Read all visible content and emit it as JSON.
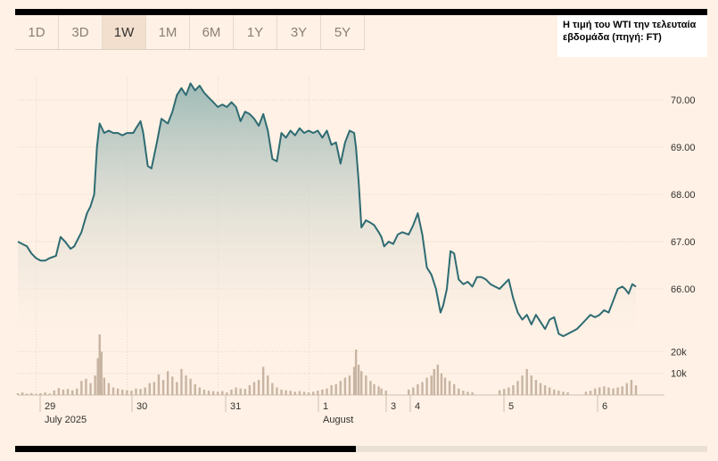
{
  "range_tabs": [
    {
      "label": "1D",
      "active": false
    },
    {
      "label": "3D",
      "active": false
    },
    {
      "label": "1W",
      "active": true
    },
    {
      "label": "1M",
      "active": false
    },
    {
      "label": "6M",
      "active": false
    },
    {
      "label": "1Y",
      "active": false
    },
    {
      "label": "3Y",
      "active": false
    },
    {
      "label": "5Y",
      "active": false
    }
  ],
  "caption": "Η τιμή του WTI την τελευταία εβδομάδα (πηγή: FT)",
  "colors": {
    "background": "#fff1e5",
    "line": "#2e6b72",
    "area_top": "#9fbab6",
    "volume_bar": "#c8b4a2"
  },
  "chart_data": {
    "type": "area",
    "price_axis": {
      "ylim": [
        65.45,
        70.45
      ],
      "ticks": [
        "70.00",
        "69.00",
        "68.00",
        "67.00",
        "66.00"
      ],
      "tick_values": [
        70,
        69,
        68,
        67,
        66
      ],
      "position": "right"
    },
    "volume_axis": {
      "ticks": [
        "20k",
        "10k"
      ],
      "tick_values": [
        20000,
        10000
      ],
      "ylim": [
        0,
        31000
      ]
    },
    "x_axis": {
      "labels": [
        {
          "day": "29",
          "month": "July 2025",
          "t": 0.4
        },
        {
          "day": "30",
          "month": "",
          "t": 1.4
        },
        {
          "day": "31",
          "month": "",
          "t": 2.4
        },
        {
          "day": "1",
          "month": "August",
          "t": 3.4
        },
        {
          "day": "3",
          "month": "",
          "t": 4.0
        },
        {
          "day": "4",
          "month": "",
          "t": 4.24
        },
        {
          "day": "5",
          "month": "",
          "t": 5.24
        },
        {
          "day": "6",
          "month": "",
          "t": 6.24
        }
      ],
      "range": [
        0,
        6.6
      ]
    },
    "price": [
      [
        0.0,
        67.0
      ],
      [
        0.05,
        66.95
      ],
      [
        0.1,
        66.9
      ],
      [
        0.15,
        66.75
      ],
      [
        0.2,
        66.65
      ],
      [
        0.25,
        66.6
      ],
      [
        0.3,
        66.6
      ],
      [
        0.35,
        66.65
      ],
      [
        0.42,
        66.7
      ],
      [
        0.47,
        67.1
      ],
      [
        0.52,
        67.0
      ],
      [
        0.58,
        66.85
      ],
      [
        0.62,
        66.9
      ],
      [
        0.7,
        67.2
      ],
      [
        0.76,
        67.6
      ],
      [
        0.8,
        67.75
      ],
      [
        0.84,
        68.0
      ],
      [
        0.87,
        69.0
      ],
      [
        0.9,
        69.5
      ],
      [
        0.95,
        69.3
      ],
      [
        1.0,
        69.35
      ],
      [
        1.05,
        69.3
      ],
      [
        1.1,
        69.3
      ],
      [
        1.15,
        69.25
      ],
      [
        1.2,
        69.3
      ],
      [
        1.27,
        69.3
      ],
      [
        1.3,
        69.4
      ],
      [
        1.35,
        69.55
      ],
      [
        1.38,
        69.3
      ],
      [
        1.43,
        68.6
      ],
      [
        1.47,
        68.55
      ],
      [
        1.53,
        69.1
      ],
      [
        1.58,
        69.6
      ],
      [
        1.65,
        69.5
      ],
      [
        1.7,
        69.75
      ],
      [
        1.75,
        70.1
      ],
      [
        1.8,
        70.25
      ],
      [
        1.85,
        70.1
      ],
      [
        1.9,
        70.35
      ],
      [
        1.95,
        70.2
      ],
      [
        2.0,
        70.3
      ],
      [
        2.05,
        70.15
      ],
      [
        2.1,
        70.05
      ],
      [
        2.15,
        69.95
      ],
      [
        2.2,
        69.85
      ],
      [
        2.25,
        69.9
      ],
      [
        2.3,
        69.85
      ],
      [
        2.35,
        69.95
      ],
      [
        2.4,
        69.85
      ],
      [
        2.45,
        69.55
      ],
      [
        2.5,
        69.75
      ],
      [
        2.55,
        69.7
      ],
      [
        2.6,
        69.6
      ],
      [
        2.65,
        69.45
      ],
      [
        2.7,
        69.7
      ],
      [
        2.75,
        69.35
      ],
      [
        2.8,
        68.75
      ],
      [
        2.85,
        68.7
      ],
      [
        2.9,
        69.3
      ],
      [
        2.95,
        69.2
      ],
      [
        3.0,
        69.35
      ],
      [
        3.05,
        69.25
      ],
      [
        3.1,
        69.4
      ],
      [
        3.15,
        69.3
      ],
      [
        3.2,
        69.35
      ],
      [
        3.25,
        69.3
      ],
      [
        3.3,
        69.35
      ],
      [
        3.35,
        69.2
      ],
      [
        3.4,
        69.35
      ],
      [
        3.45,
        69.05
      ],
      [
        3.5,
        69.1
      ],
      [
        3.55,
        68.65
      ],
      [
        3.6,
        69.1
      ],
      [
        3.65,
        69.35
      ],
      [
        3.7,
        69.3
      ],
      [
        3.72,
        69.0
      ],
      [
        3.75,
        68.25
      ],
      [
        3.78,
        67.3
      ],
      [
        3.83,
        67.45
      ],
      [
        3.88,
        67.4
      ],
      [
        3.92,
        67.35
      ],
      [
        3.97,
        67.2
      ],
      [
        4.0,
        67.1
      ],
      [
        4.03,
        66.9
      ],
      [
        4.08,
        67.0
      ],
      [
        4.13,
        66.95
      ],
      [
        4.18,
        67.15
      ],
      [
        4.23,
        67.2
      ],
      [
        4.3,
        67.15
      ],
      [
        4.35,
        67.35
      ],
      [
        4.4,
        67.6
      ],
      [
        4.45,
        67.15
      ],
      [
        4.5,
        66.45
      ],
      [
        4.55,
        66.3
      ],
      [
        4.6,
        66.0
      ],
      [
        4.65,
        65.5
      ],
      [
        4.68,
        65.65
      ],
      [
        4.72,
        66.0
      ],
      [
        4.76,
        66.8
      ],
      [
        4.8,
        66.75
      ],
      [
        4.85,
        66.2
      ],
      [
        4.9,
        66.1
      ],
      [
        4.95,
        66.15
      ],
      [
        5.0,
        66.05
      ],
      [
        5.05,
        66.25
      ],
      [
        5.1,
        66.25
      ],
      [
        5.15,
        66.2
      ],
      [
        5.2,
        66.1
      ],
      [
        5.25,
        66.05
      ],
      [
        5.3,
        66.0
      ],
      [
        5.35,
        66.1
      ],
      [
        5.4,
        66.2
      ],
      [
        5.45,
        65.8
      ],
      [
        5.5,
        65.5
      ],
      [
        5.55,
        65.35
      ],
      [
        5.6,
        65.45
      ],
      [
        5.65,
        65.25
      ],
      [
        5.7,
        65.45
      ],
      [
        5.75,
        65.3
      ],
      [
        5.8,
        65.15
      ],
      [
        5.85,
        65.35
      ],
      [
        5.9,
        65.4
      ],
      [
        5.95,
        65.05
      ],
      [
        6.0,
        65.0
      ],
      [
        6.05,
        65.05
      ],
      [
        6.1,
        65.1
      ],
      [
        6.15,
        65.15
      ],
      [
        6.2,
        65.25
      ],
      [
        6.25,
        65.35
      ],
      [
        6.3,
        65.45
      ],
      [
        6.35,
        65.4
      ],
      [
        6.4,
        65.45
      ],
      [
        6.45,
        65.55
      ],
      [
        6.5,
        65.5
      ],
      [
        6.55,
        65.75
      ],
      [
        6.6,
        66.0
      ],
      [
        6.65,
        66.05
      ],
      [
        6.68,
        66.0
      ],
      [
        6.72,
        65.9
      ],
      [
        6.76,
        66.1
      ],
      [
        6.8,
        66.05
      ]
    ],
    "volume": [
      [
        0.0,
        800
      ],
      [
        0.05,
        1200
      ],
      [
        0.1,
        600
      ],
      [
        0.15,
        900
      ],
      [
        0.2,
        500
      ],
      [
        0.25,
        800
      ],
      [
        0.3,
        1200
      ],
      [
        0.35,
        700
      ],
      [
        0.4,
        2100
      ],
      [
        0.45,
        3200
      ],
      [
        0.5,
        2500
      ],
      [
        0.55,
        2800
      ],
      [
        0.6,
        2200
      ],
      [
        0.65,
        3000
      ],
      [
        0.7,
        6500
      ],
      [
        0.75,
        7500
      ],
      [
        0.8,
        5500
      ],
      [
        0.85,
        9000
      ],
      [
        0.88,
        17000
      ],
      [
        0.9,
        28000
      ],
      [
        0.92,
        20000
      ],
      [
        0.95,
        8000
      ],
      [
        1.0,
        5500
      ],
      [
        1.05,
        3500
      ],
      [
        1.1,
        3000
      ],
      [
        1.15,
        2500
      ],
      [
        1.2,
        2200
      ],
      [
        1.25,
        2000
      ],
      [
        1.3,
        3000
      ],
      [
        1.35,
        2800
      ],
      [
        1.4,
        3500
      ],
      [
        1.45,
        5500
      ],
      [
        1.5,
        6000
      ],
      [
        1.55,
        9500
      ],
      [
        1.6,
        7000
      ],
      [
        1.65,
        11000
      ],
      [
        1.7,
        8500
      ],
      [
        1.75,
        6000
      ],
      [
        1.8,
        12000
      ],
      [
        1.85,
        9000
      ],
      [
        1.9,
        7500
      ],
      [
        1.95,
        5000
      ],
      [
        2.0,
        3500
      ],
      [
        2.05,
        2500
      ],
      [
        2.1,
        2000
      ],
      [
        2.15,
        1800
      ],
      [
        2.2,
        1500
      ],
      [
        2.25,
        1800
      ],
      [
        2.3,
        1200
      ],
      [
        2.35,
        2500
      ],
      [
        2.4,
        3500
      ],
      [
        2.45,
        3000
      ],
      [
        2.5,
        2800
      ],
      [
        2.55,
        4500
      ],
      [
        2.6,
        6000
      ],
      [
        2.65,
        7000
      ],
      [
        2.7,
        13000
      ],
      [
        2.75,
        9000
      ],
      [
        2.8,
        5500
      ],
      [
        2.85,
        3500
      ],
      [
        2.9,
        2500
      ],
      [
        2.95,
        2200
      ],
      [
        3.0,
        2000
      ],
      [
        3.05,
        1500
      ],
      [
        3.1,
        1800
      ],
      [
        3.15,
        1500
      ],
      [
        3.2,
        1200
      ],
      [
        3.25,
        1500
      ],
      [
        3.3,
        2000
      ],
      [
        3.35,
        2500
      ],
      [
        3.4,
        3000
      ],
      [
        3.45,
        4500
      ],
      [
        3.5,
        5000
      ],
      [
        3.55,
        6500
      ],
      [
        3.6,
        8000
      ],
      [
        3.65,
        9000
      ],
      [
        3.7,
        13000
      ],
      [
        3.72,
        21000
      ],
      [
        3.75,
        14000
      ],
      [
        3.78,
        11000
      ],
      [
        3.83,
        9000
      ],
      [
        3.88,
        6500
      ],
      [
        3.92,
        5000
      ],
      [
        3.97,
        4000
      ],
      [
        4.0,
        3000
      ],
      [
        4.05,
        2000
      ],
      [
        4.3,
        2500
      ],
      [
        4.35,
        3500
      ],
      [
        4.4,
        5000
      ],
      [
        4.45,
        6000
      ],
      [
        4.5,
        8000
      ],
      [
        4.55,
        9000
      ],
      [
        4.58,
        12000
      ],
      [
        4.62,
        14000
      ],
      [
        4.66,
        10000
      ],
      [
        4.7,
        8000
      ],
      [
        4.75,
        6500
      ],
      [
        4.8,
        5000
      ],
      [
        4.85,
        3000
      ],
      [
        4.9,
        2000
      ],
      [
        4.95,
        1500
      ],
      [
        5.0,
        1200
      ],
      [
        5.3,
        2200
      ],
      [
        5.35,
        2800
      ],
      [
        5.4,
        3500
      ],
      [
        5.45,
        4500
      ],
      [
        5.5,
        6500
      ],
      [
        5.55,
        9000
      ],
      [
        5.6,
        12000
      ],
      [
        5.65,
        9000
      ],
      [
        5.7,
        7000
      ],
      [
        5.75,
        5500
      ],
      [
        5.8,
        4500
      ],
      [
        5.85,
        3500
      ],
      [
        5.9,
        2500
      ],
      [
        5.95,
        2000
      ],
      [
        6.0,
        1500
      ],
      [
        6.05,
        1200
      ],
      [
        6.25,
        1500
      ],
      [
        6.3,
        2000
      ],
      [
        6.35,
        3000
      ],
      [
        6.4,
        3500
      ],
      [
        6.45,
        4000
      ],
      [
        6.5,
        3500
      ],
      [
        6.55,
        3000
      ],
      [
        6.6,
        3500
      ],
      [
        6.65,
        4000
      ],
      [
        6.7,
        5500
      ],
      [
        6.75,
        7000
      ],
      [
        6.8,
        4500
      ]
    ]
  }
}
